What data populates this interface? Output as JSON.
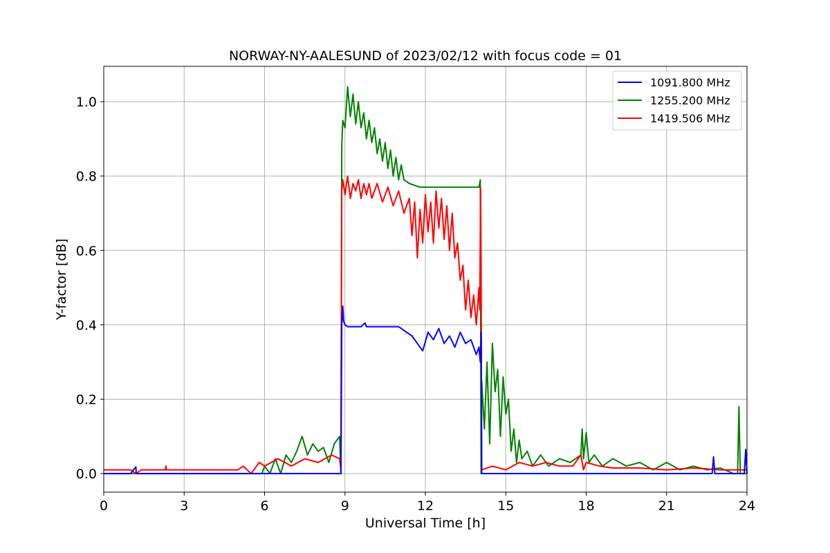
{
  "chart_data": {
    "type": "line",
    "title": "NORWAY-NY-AALESUND of 2023/02/12 with focus code = 01",
    "xlabel": "Universal Time [h]",
    "ylabel": "Y-factor [dB]",
    "xlim": [
      0,
      24
    ],
    "ylim": [
      -0.05,
      1.095
    ],
    "xticks": [
      0,
      3,
      6,
      9,
      12,
      15,
      18,
      21,
      24
    ],
    "xtick_labels": [
      "0",
      "3",
      "6",
      "9",
      "12",
      "15",
      "18",
      "21",
      "24"
    ],
    "yticks": [
      0.0,
      0.2,
      0.4,
      0.6,
      0.8,
      1.0
    ],
    "ytick_labels": [
      "0.0",
      "0.2",
      "0.4",
      "0.6",
      "0.8",
      "1.0"
    ],
    "grid": true,
    "legend_position": "top-right",
    "series": [
      {
        "name": "1091.800 MHz",
        "color": "#0000ff",
        "x": [
          0,
          1.0,
          1.2,
          1.21,
          1.3,
          5.0,
          8.85,
          8.88,
          8.92,
          8.95,
          9.0,
          9.1,
          9.3,
          9.6,
          9.75,
          9.8,
          10.0,
          10.5,
          11.0,
          11.3,
          11.5,
          11.7,
          11.9,
          12.1,
          12.3,
          12.5,
          12.7,
          12.9,
          13.1,
          13.3,
          13.5,
          13.7,
          13.9,
          14.0,
          14.05,
          14.08,
          14.1,
          15.0,
          18.0,
          21.0,
          22.7,
          22.75,
          22.8,
          22.85,
          23.0,
          23.9,
          23.95,
          24.0
        ],
        "y": [
          0.0,
          0.0,
          0.018,
          0.0,
          0.0,
          0.0,
          0.0,
          0.4,
          0.45,
          0.41,
          0.4,
          0.395,
          0.395,
          0.395,
          0.405,
          0.395,
          0.395,
          0.395,
          0.395,
          0.38,
          0.37,
          0.35,
          0.33,
          0.38,
          0.36,
          0.39,
          0.35,
          0.37,
          0.34,
          0.38,
          0.35,
          0.36,
          0.32,
          0.34,
          0.3,
          0.38,
          0.0,
          0.0,
          0.0,
          0.0,
          0.0,
          0.045,
          0.0,
          0.0,
          0.0,
          0.0,
          0.065,
          0.0
        ]
      },
      {
        "name": "1255.200 MHz",
        "color": "#008000",
        "x": [
          0,
          5.9,
          6.0,
          6.2,
          6.4,
          6.6,
          6.8,
          7.0,
          7.2,
          7.4,
          7.6,
          7.8,
          8.0,
          8.2,
          8.4,
          8.6,
          8.8,
          8.85,
          8.88,
          8.92,
          9.0,
          9.1,
          9.2,
          9.3,
          9.4,
          9.5,
          9.6,
          9.7,
          9.8,
          9.9,
          10.0,
          10.1,
          10.2,
          10.3,
          10.4,
          10.5,
          10.6,
          10.7,
          10.8,
          10.9,
          11.0,
          11.1,
          11.2,
          11.4,
          11.6,
          11.8,
          12.0,
          12.5,
          13.0,
          13.5,
          14.0,
          14.05,
          14.08,
          14.1,
          14.2,
          14.3,
          14.4,
          14.5,
          14.6,
          14.7,
          14.8,
          14.9,
          15.0,
          15.1,
          15.2,
          15.3,
          15.4,
          15.5,
          15.6,
          15.8,
          16.0,
          16.3,
          16.6,
          17.0,
          17.4,
          17.8,
          17.85,
          17.9,
          18.0,
          18.1,
          18.3,
          18.6,
          19.0,
          19.5,
          20.0,
          20.5,
          21.0,
          21.5,
          22.0,
          22.5,
          23.0,
          23.5,
          23.65,
          23.7,
          23.75,
          24.0
        ],
        "y": [
          0.0,
          0.0,
          0.02,
          0.0,
          0.04,
          0.0,
          0.05,
          0.03,
          0.06,
          0.1,
          0.05,
          0.08,
          0.06,
          0.07,
          0.03,
          0.08,
          0.1,
          0.0,
          0.88,
          0.95,
          0.93,
          1.04,
          0.96,
          1.02,
          0.94,
          1.0,
          0.93,
          0.97,
          0.9,
          0.95,
          0.89,
          0.93,
          0.86,
          0.9,
          0.84,
          0.89,
          0.82,
          0.87,
          0.8,
          0.85,
          0.79,
          0.83,
          0.79,
          0.78,
          0.775,
          0.77,
          0.77,
          0.77,
          0.77,
          0.77,
          0.77,
          0.79,
          0.0,
          0.25,
          0.12,
          0.3,
          0.08,
          0.35,
          0.22,
          0.28,
          0.1,
          0.26,
          0.16,
          0.2,
          0.06,
          0.12,
          0.03,
          0.09,
          0.04,
          0.06,
          0.02,
          0.05,
          0.02,
          0.04,
          0.03,
          0.05,
          0.12,
          0.04,
          0.11,
          0.03,
          0.05,
          0.02,
          0.04,
          0.02,
          0.03,
          0.01,
          0.03,
          0.01,
          0.02,
          0.01,
          0.015,
          0.0,
          0.0,
          0.18,
          0.0,
          0.0
        ]
      },
      {
        "name": "1419.506 MHz",
        "color": "#ff0000",
        "x": [
          0,
          1.0,
          1.2,
          1.4,
          2.3,
          2.32,
          2.34,
          5.0,
          5.2,
          5.5,
          5.8,
          6.0,
          6.5,
          7.0,
          7.5,
          8.0,
          8.5,
          8.8,
          8.85,
          8.88,
          8.92,
          9.0,
          9.1,
          9.2,
          9.3,
          9.4,
          9.5,
          9.6,
          9.7,
          9.8,
          9.9,
          10.0,
          10.2,
          10.4,
          10.6,
          10.8,
          11.0,
          11.2,
          11.4,
          11.5,
          11.6,
          11.7,
          11.8,
          11.9,
          12.0,
          12.1,
          12.2,
          12.3,
          12.4,
          12.5,
          12.6,
          12.7,
          12.8,
          12.9,
          13.0,
          13.1,
          13.2,
          13.3,
          13.4,
          13.5,
          13.6,
          13.7,
          13.8,
          13.9,
          14.0,
          14.03,
          14.06,
          14.08,
          14.1,
          14.5,
          15.0,
          15.5,
          16.0,
          16.5,
          17.0,
          17.5,
          17.8,
          17.9,
          18.0,
          18.5,
          19.0,
          20.0,
          21.0,
          22.0,
          23.0,
          24.0
        ],
        "y": [
          0.01,
          0.01,
          0.0,
          0.01,
          0.01,
          0.02,
          0.01,
          0.01,
          0.02,
          0.0,
          0.03,
          0.02,
          0.04,
          0.02,
          0.04,
          0.03,
          0.05,
          0.04,
          0.01,
          0.76,
          0.79,
          0.75,
          0.8,
          0.74,
          0.78,
          0.76,
          0.79,
          0.74,
          0.78,
          0.75,
          0.78,
          0.74,
          0.78,
          0.73,
          0.77,
          0.72,
          0.76,
          0.7,
          0.74,
          0.64,
          0.73,
          0.58,
          0.71,
          0.62,
          0.75,
          0.65,
          0.73,
          0.62,
          0.76,
          0.66,
          0.74,
          0.63,
          0.72,
          0.6,
          0.7,
          0.58,
          0.62,
          0.52,
          0.56,
          0.44,
          0.52,
          0.42,
          0.48,
          0.4,
          0.5,
          0.44,
          0.77,
          0.55,
          0.01,
          0.02,
          0.01,
          0.03,
          0.02,
          0.03,
          0.02,
          0.02,
          0.05,
          0.01,
          0.03,
          0.02,
          0.015,
          0.015,
          0.01,
          0.015,
          0.01,
          0.01
        ]
      }
    ]
  }
}
